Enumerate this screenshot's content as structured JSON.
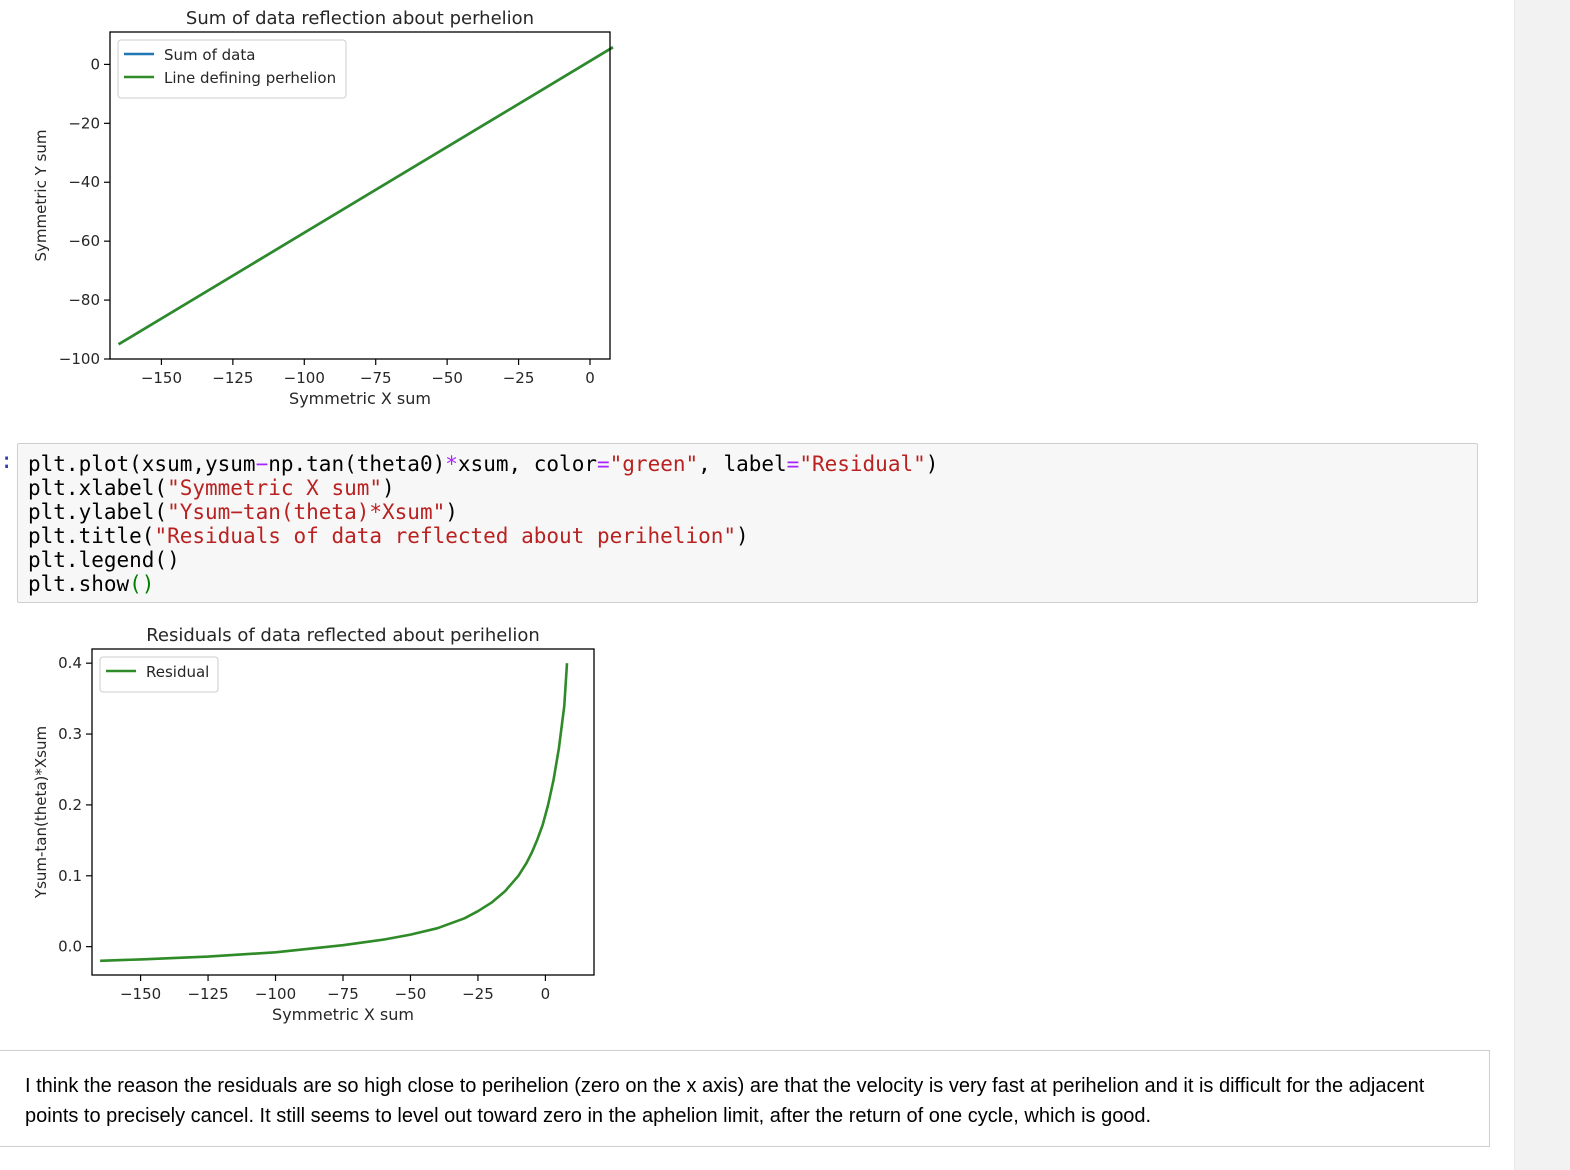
{
  "chart_data": [
    {
      "type": "line",
      "title": "Sum of data reflection about perhelion",
      "xlabel": "Symmetric X sum",
      "ylabel": "Symmetric Y sum",
      "xlim": [
        -168,
        7
      ],
      "ylim": [
        -100,
        11
      ],
      "xticks": [
        -150,
        -125,
        -100,
        -75,
        -50,
        -25,
        0
      ],
      "yticks": [
        0,
        -20,
        -40,
        -60,
        -80,
        -100
      ],
      "xtick_labels": [
        "−150",
        "−125",
        "−100",
        "−75",
        "−50",
        "−25",
        "0"
      ],
      "ytick_labels": [
        "0",
        "−20",
        "−40",
        "−60",
        "−80",
        "−100"
      ],
      "legend": "upper left",
      "grid": false,
      "series": [
        {
          "name": "Sum of data",
          "color": "#1f77b4",
          "x": [
            -165,
            8
          ],
          "y": [
            -95,
            5.8
          ]
        },
        {
          "name": "Line defining perhelion",
          "color": "#2e8b27",
          "x": [
            -165,
            8
          ],
          "y": [
            -95,
            5.8
          ]
        }
      ]
    },
    {
      "type": "line",
      "title": "Residuals of data reflected about perihelion",
      "xlabel": "Symmetric X sum",
      "ylabel": "Ysum-tan(theta)*Xsum",
      "xlim": [
        -168,
        18
      ],
      "ylim": [
        -0.04,
        0.42
      ],
      "xticks": [
        -150,
        -125,
        -100,
        -75,
        -50,
        -25,
        0
      ],
      "yticks": [
        0.0,
        0.1,
        0.2,
        0.3,
        0.4
      ],
      "xtick_labels": [
        "−150",
        "−125",
        "−100",
        "−75",
        "−50",
        "−25",
        "0"
      ],
      "ytick_labels": [
        "0.0",
        "0.1",
        "0.2",
        "0.3",
        "0.4"
      ],
      "legend": "upper left",
      "grid": false,
      "series": [
        {
          "name": "Residual",
          "color": "#2e8b27",
          "x": [
            -165,
            -150,
            -125,
            -100,
            -75,
            -60,
            -50,
            -40,
            -30,
            -25,
            -20,
            -15,
            -10,
            -7,
            -5,
            -3,
            -1,
            1,
            3,
            5,
            7,
            8
          ],
          "y": [
            -0.02,
            -0.018,
            -0.014,
            -0.008,
            0.002,
            0.01,
            0.017,
            0.026,
            0.04,
            0.05,
            0.062,
            0.078,
            0.1,
            0.118,
            0.133,
            0.151,
            0.172,
            0.2,
            0.235,
            0.28,
            0.34,
            0.4
          ]
        }
      ]
    }
  ],
  "code_cell": {
    "prompt": ":",
    "lines": [
      [
        {
          "t": "plt.plot(xsum,ysum"
        },
        {
          "t": "−",
          "k": "op"
        },
        {
          "t": "np.tan(theta0)"
        },
        {
          "t": "*",
          "k": "op"
        },
        {
          "t": "xsum, color"
        },
        {
          "t": "=",
          "k": "op"
        },
        {
          "t": "\"green\"",
          "k": "str"
        },
        {
          "t": ", label"
        },
        {
          "t": "=",
          "k": "op"
        },
        {
          "t": "\"Residual\"",
          "k": "str"
        },
        {
          "t": ")"
        }
      ],
      [
        {
          "t": "plt.xlabel("
        },
        {
          "t": "\"Symmetric X sum\"",
          "k": "str"
        },
        {
          "t": ")"
        }
      ],
      [
        {
          "t": "plt.ylabel("
        },
        {
          "t": "\"Ysum−tan(theta)*Xsum\"",
          "k": "str"
        },
        {
          "t": ")"
        }
      ],
      [
        {
          "t": "plt.title("
        },
        {
          "t": "\"Residuals of data reflected about perihelion\"",
          "k": "str"
        },
        {
          "t": ")"
        }
      ],
      [
        {
          "t": "plt.legend()"
        }
      ],
      [
        {
          "t": "plt.show"
        },
        {
          "t": "()",
          "k": "paren"
        }
      ]
    ]
  },
  "markdown_cell": {
    "text": "I think the reason the residuals are so high close to perihelion (zero on the x axis) are that the velocity is very fast at perihelion and it is difficult for the adjacent points to precisely cancel. It still seems to level out toward zero in the aphelion limit, after the return of one cycle, which is good."
  }
}
